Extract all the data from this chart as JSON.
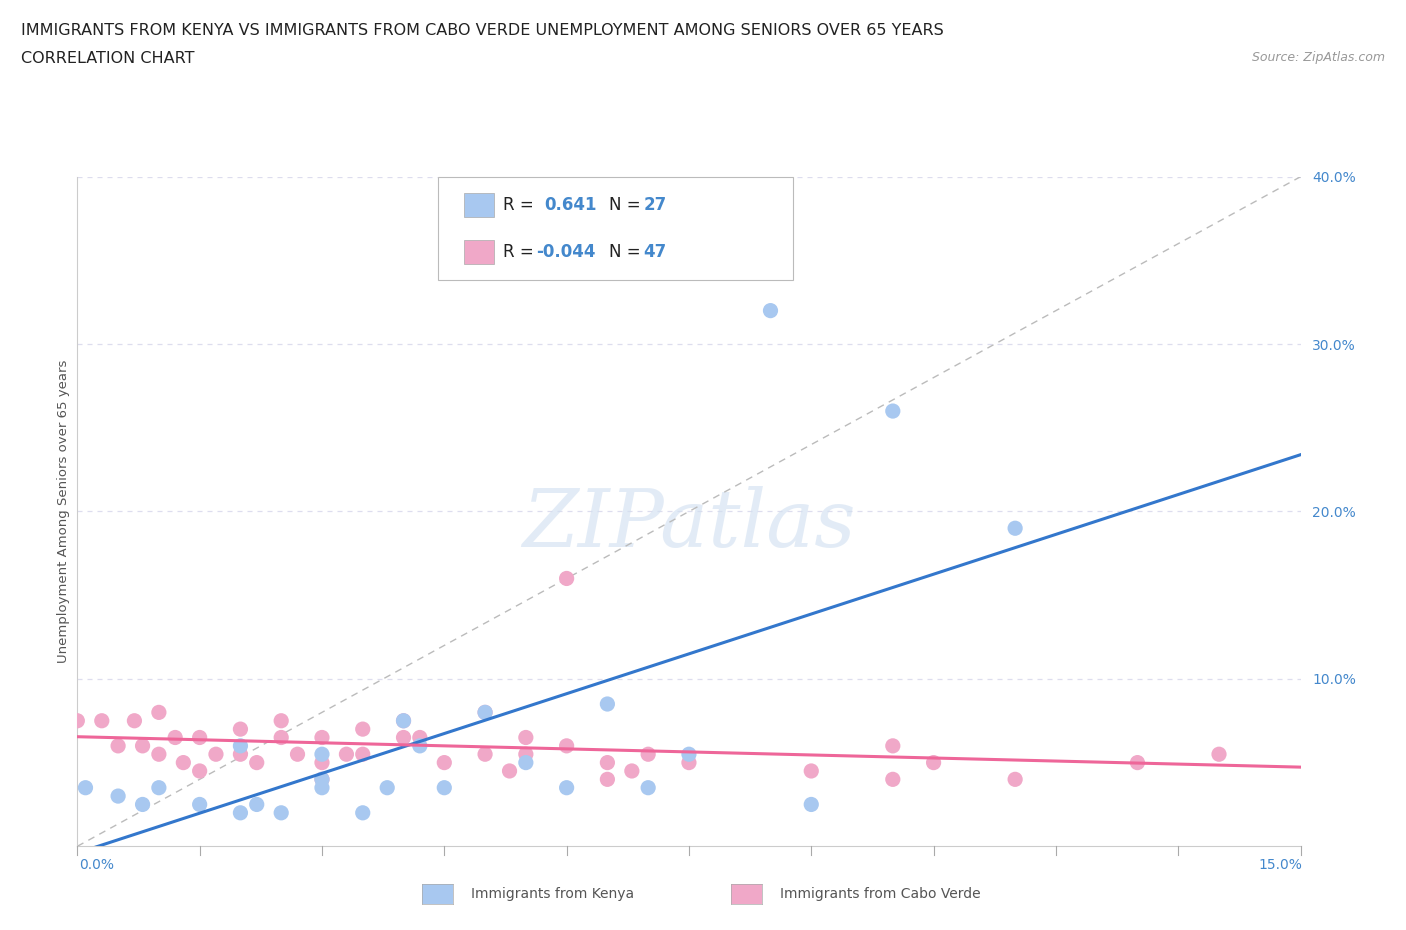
{
  "title_line1": "IMMIGRANTS FROM KENYA VS IMMIGRANTS FROM CABO VERDE UNEMPLOYMENT AMONG SENIORS OVER 65 YEARS",
  "title_line2": "CORRELATION CHART",
  "source": "Source: ZipAtlas.com",
  "ylabel": "Unemployment Among Seniors over 65 years",
  "xlim": [
    0.0,
    0.15
  ],
  "ylim": [
    0.0,
    0.4
  ],
  "yticks": [
    0.0,
    0.1,
    0.2,
    0.3,
    0.4
  ],
  "ytick_labels": [
    "",
    "10.0%",
    "20.0%",
    "30.0%",
    "40.0%"
  ],
  "kenya_R": 0.641,
  "kenya_N": 27,
  "caboverde_R": -0.044,
  "caboverde_N": 47,
  "kenya_color": "#a8c8f0",
  "caboverde_color": "#f0a8c8",
  "kenya_line_color": "#3377cc",
  "caboverde_line_color": "#ee6699",
  "kenya_x": [
    0.001,
    0.005,
    0.008,
    0.01,
    0.015,
    0.02,
    0.02,
    0.022,
    0.025,
    0.03,
    0.03,
    0.03,
    0.035,
    0.038,
    0.04,
    0.042,
    0.045,
    0.05,
    0.055,
    0.06,
    0.065,
    0.07,
    0.075,
    0.085,
    0.09,
    0.1,
    0.115
  ],
  "kenya_y": [
    0.035,
    0.03,
    0.025,
    0.035,
    0.025,
    0.02,
    0.06,
    0.025,
    0.02,
    0.035,
    0.04,
    0.055,
    0.02,
    0.035,
    0.075,
    0.06,
    0.035,
    0.08,
    0.05,
    0.035,
    0.085,
    0.035,
    0.055,
    0.32,
    0.025,
    0.26,
    0.19
  ],
  "caboverde_x": [
    0.0,
    0.003,
    0.005,
    0.007,
    0.008,
    0.01,
    0.01,
    0.012,
    0.013,
    0.015,
    0.015,
    0.017,
    0.02,
    0.02,
    0.022,
    0.025,
    0.025,
    0.027,
    0.03,
    0.03,
    0.03,
    0.033,
    0.035,
    0.035,
    0.04,
    0.04,
    0.042,
    0.045,
    0.05,
    0.05,
    0.053,
    0.055,
    0.055,
    0.06,
    0.06,
    0.065,
    0.065,
    0.068,
    0.07,
    0.075,
    0.09,
    0.1,
    0.1,
    0.105,
    0.115,
    0.13,
    0.14
  ],
  "caboverde_y": [
    0.075,
    0.075,
    0.06,
    0.075,
    0.06,
    0.08,
    0.055,
    0.065,
    0.05,
    0.065,
    0.045,
    0.055,
    0.07,
    0.055,
    0.05,
    0.075,
    0.065,
    0.055,
    0.065,
    0.05,
    0.04,
    0.055,
    0.07,
    0.055,
    0.065,
    0.075,
    0.065,
    0.05,
    0.08,
    0.055,
    0.045,
    0.065,
    0.055,
    0.16,
    0.06,
    0.05,
    0.04,
    0.045,
    0.055,
    0.05,
    0.045,
    0.06,
    0.04,
    0.05,
    0.04,
    0.05,
    0.055
  ],
  "background_color": "#ffffff",
  "grid_color": "#ddddee",
  "title_fontsize": 11.5,
  "axis_label_fontsize": 9.5,
  "tick_fontsize": 10,
  "watermark_color": "#d0dff0",
  "watermark_alpha": 0.6
}
